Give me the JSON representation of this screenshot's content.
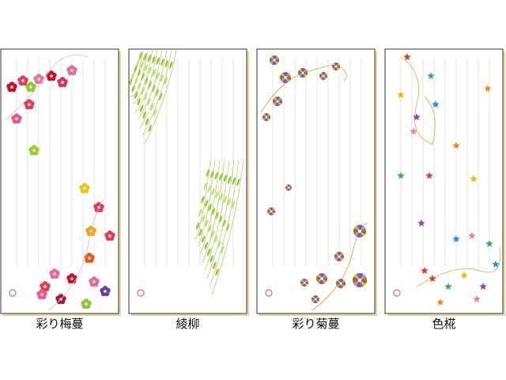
{
  "items": [
    {
      "caption": "彩り梅蔓"
    },
    {
      "caption": "綾柳"
    },
    {
      "caption": "彩り菊蔓"
    },
    {
      "caption": "色椛"
    }
  ]
}
